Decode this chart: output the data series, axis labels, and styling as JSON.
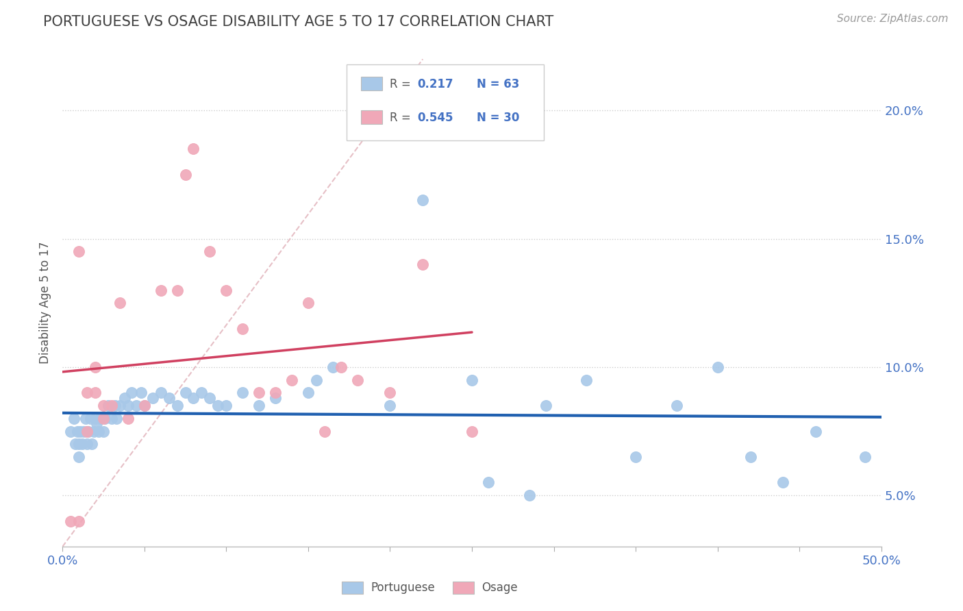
{
  "title": "PORTUGUESE VS OSAGE DISABILITY AGE 5 TO 17 CORRELATION CHART",
  "source": "Source: ZipAtlas.com",
  "ylabel": "Disability Age 5 to 17",
  "xlim": [
    0.0,
    0.5
  ],
  "ylim": [
    0.03,
    0.22
  ],
  "y_ticks": [
    0.05,
    0.1,
    0.15,
    0.2
  ],
  "y_tick_labels": [
    "5.0%",
    "10.0%",
    "15.0%",
    "20.0%"
  ],
  "x_ticks": [
    0.0,
    0.05,
    0.1,
    0.15,
    0.2,
    0.25,
    0.3,
    0.35,
    0.4,
    0.45,
    0.5
  ],
  "x_tick_labels": [
    "0.0%",
    "",
    "",
    "",
    "",
    "",
    "",
    "",
    "",
    "",
    "50.0%"
  ],
  "portuguese_R": 0.217,
  "portuguese_N": 63,
  "osage_R": 0.545,
  "osage_N": 30,
  "portuguese_color": "#A8C8E8",
  "osage_color": "#F0A8B8",
  "trendline_portuguese_color": "#2060B0",
  "trendline_osage_color": "#D04060",
  "trendline_diagonal_color": "#E0B0B8",
  "label_color": "#4472C4",
  "title_color": "#404040",
  "portuguese_x": [
    0.005,
    0.007,
    0.008,
    0.009,
    0.01,
    0.01,
    0.011,
    0.012,
    0.013,
    0.014,
    0.015,
    0.015,
    0.016,
    0.017,
    0.018,
    0.019,
    0.02,
    0.021,
    0.022,
    0.023,
    0.025,
    0.026,
    0.028,
    0.03,
    0.032,
    0.033,
    0.035,
    0.038,
    0.04,
    0.042,
    0.045,
    0.048,
    0.05,
    0.055,
    0.06,
    0.065,
    0.07,
    0.075,
    0.08,
    0.085,
    0.09,
    0.095,
    0.1,
    0.11,
    0.12,
    0.13,
    0.15,
    0.155,
    0.165,
    0.2,
    0.22,
    0.25,
    0.26,
    0.285,
    0.295,
    0.32,
    0.35,
    0.375,
    0.4,
    0.42,
    0.44,
    0.46,
    0.49
  ],
  "portuguese_y": [
    0.075,
    0.08,
    0.07,
    0.075,
    0.065,
    0.07,
    0.075,
    0.07,
    0.075,
    0.08,
    0.07,
    0.075,
    0.075,
    0.08,
    0.07,
    0.075,
    0.08,
    0.078,
    0.075,
    0.08,
    0.075,
    0.08,
    0.085,
    0.08,
    0.085,
    0.08,
    0.085,
    0.088,
    0.085,
    0.09,
    0.085,
    0.09,
    0.085,
    0.088,
    0.09,
    0.088,
    0.085,
    0.09,
    0.088,
    0.09,
    0.088,
    0.085,
    0.085,
    0.09,
    0.085,
    0.088,
    0.09,
    0.095,
    0.1,
    0.085,
    0.165,
    0.095,
    0.055,
    0.05,
    0.085,
    0.095,
    0.065,
    0.085,
    0.1,
    0.065,
    0.055,
    0.075,
    0.065
  ],
  "osage_x": [
    0.005,
    0.01,
    0.01,
    0.015,
    0.015,
    0.02,
    0.02,
    0.025,
    0.025,
    0.03,
    0.035,
    0.04,
    0.05,
    0.06,
    0.07,
    0.075,
    0.08,
    0.09,
    0.1,
    0.11,
    0.12,
    0.13,
    0.14,
    0.15,
    0.16,
    0.17,
    0.18,
    0.2,
    0.22,
    0.25
  ],
  "osage_y": [
    0.04,
    0.04,
    0.145,
    0.075,
    0.09,
    0.09,
    0.1,
    0.08,
    0.085,
    0.085,
    0.125,
    0.08,
    0.085,
    0.13,
    0.13,
    0.175,
    0.185,
    0.145,
    0.13,
    0.115,
    0.09,
    0.09,
    0.095,
    0.125,
    0.075,
    0.1,
    0.095,
    0.09,
    0.14,
    0.075
  ],
  "background_color": "#FFFFFF",
  "grid_color": "#CCCCCC"
}
